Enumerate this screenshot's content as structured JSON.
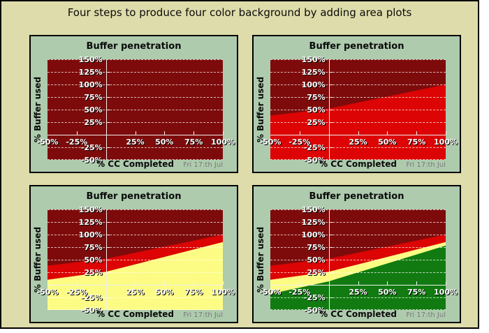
{
  "page": {
    "title": "Four steps to produce four color background by adding area plots"
  },
  "panel_labels": {
    "chart_title": "Buffer penetration",
    "x_axis_title": "% CC Completed",
    "y_axis_title": "% Buffer used",
    "date_annotation": "Fri 17:th Jul"
  },
  "axes": {
    "xlim_percent": [
      -50,
      100
    ],
    "ylim_percent": [
      -50,
      150
    ],
    "x_ticks": [
      {
        "value": -50,
        "label": "-50%"
      },
      {
        "value": -25,
        "label": "-25%"
      },
      {
        "value": 25,
        "label": "25%"
      },
      {
        "value": 50,
        "label": "50%"
      },
      {
        "value": 75,
        "label": "75%"
      },
      {
        "value": 100,
        "label": "100%"
      }
    ],
    "y_ticks": [
      {
        "value": 150,
        "label": "150%"
      },
      {
        "value": 125,
        "label": "125%"
      },
      {
        "value": 100,
        "label": "100%"
      },
      {
        "value": 75,
        "label": "75%"
      },
      {
        "value": 50,
        "label": "50%"
      },
      {
        "value": 25,
        "label": "25%"
      },
      {
        "value": -25,
        "label": "-25%"
      },
      {
        "value": -50,
        "label": "-50%"
      }
    ],
    "h_gridlines_at": [
      150,
      125,
      100,
      75,
      50,
      25,
      -25,
      -50
    ],
    "grid_style": "dashed",
    "x_tick_marks_at": [
      -25,
      25,
      50,
      75,
      100
    ],
    "y_tick_marks_at": [
      125,
      100,
      75,
      50,
      25,
      -25
    ]
  },
  "colors": {
    "page_bg": "#DEDCAA",
    "panel_bg": "#AECBAE",
    "border": "#000000",
    "darkred": "#7E0B0B",
    "red": "#DC0404",
    "yellow": "#FCFC84",
    "green": "#117B11",
    "grid": "#FFFFFF",
    "axis_line": "#EFEFEF",
    "tick_label": "#FFFFFF",
    "tick_label_shadow": "#000000",
    "title_text": "#0B0B0B",
    "date_text": "#7A7A7A"
  },
  "chart_data": [
    {
      "step": 1,
      "type": "area",
      "title": "Buffer penetration",
      "xlabel": "% CC Completed",
      "ylabel": "% Buffer used",
      "annotation": "Fri 17:th Jul",
      "xlim": [
        -50,
        100
      ],
      "ylim": [
        -50,
        150
      ],
      "background_zone": "darkred",
      "areas": []
    },
    {
      "step": 2,
      "type": "area",
      "title": "Buffer penetration",
      "xlabel": "% CC Completed",
      "ylabel": "% Buffer used",
      "annotation": "Fri 17:th Jul",
      "xlim": [
        -50,
        100
      ],
      "ylim": [
        -50,
        150
      ],
      "background_zone": "darkred",
      "areas": [
        {
          "zone": "red",
          "boundary_x": [
            -50,
            0,
            100
          ],
          "boundary_y": [
            38,
            52,
            100
          ]
        }
      ]
    },
    {
      "step": 3,
      "type": "area",
      "title": "Buffer penetration",
      "xlabel": "% CC Completed",
      "ylabel": "% Buffer used",
      "annotation": "Fri 17:th Jul",
      "xlim": [
        -50,
        100
      ],
      "ylim": [
        -50,
        150
      ],
      "background_zone": "darkred",
      "areas": [
        {
          "zone": "red",
          "boundary_x": [
            -50,
            0,
            100
          ],
          "boundary_y": [
            38,
            52,
            100
          ]
        },
        {
          "zone": "yellow",
          "boundary_x": [
            -50,
            0,
            100
          ],
          "boundary_y": [
            10,
            26,
            85
          ]
        }
      ]
    },
    {
      "step": 4,
      "type": "area",
      "title": "Buffer penetration",
      "xlabel": "% CC Completed",
      "ylabel": "% Buffer used",
      "annotation": "Fri 17:th Jul",
      "xlim": [
        -50,
        100
      ],
      "ylim": [
        -50,
        150
      ],
      "background_zone": "darkred",
      "areas": [
        {
          "zone": "red",
          "boundary_x": [
            -50,
            0,
            100
          ],
          "boundary_y": [
            38,
            52,
            100
          ]
        },
        {
          "zone": "yellow",
          "boundary_x": [
            -50,
            0,
            100
          ],
          "boundary_y": [
            10,
            26,
            85
          ]
        },
        {
          "zone": "green",
          "boundary_x": [
            -50,
            0,
            100
          ],
          "boundary_y": [
            -18,
            7,
            78
          ]
        }
      ]
    }
  ]
}
